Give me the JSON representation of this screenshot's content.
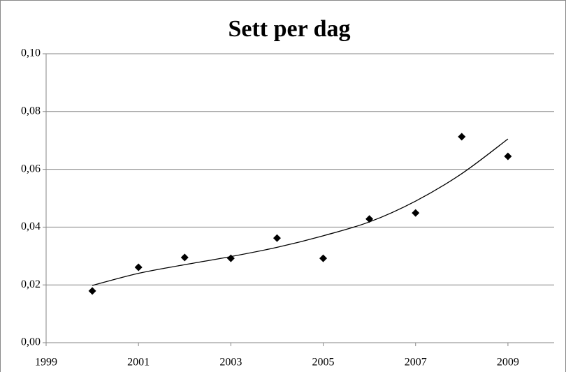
{
  "chart_data": {
    "type": "scatter",
    "title": "Sett per dag",
    "x": [
      2000,
      2001,
      2002,
      2003,
      2004,
      2005,
      2006,
      2007,
      2008,
      2009
    ],
    "values": [
      0.0179,
      0.0261,
      0.0295,
      0.0292,
      0.0362,
      0.0292,
      0.0428,
      0.0449,
      0.0713,
      0.0645
    ],
    "color": "#000000",
    "trendline": {
      "x": [
        2000,
        2001,
        2002,
        2003,
        2004,
        2005,
        2006,
        2007,
        2008,
        2009
      ],
      "values": [
        0.0198,
        0.024,
        0.027,
        0.0298,
        0.033,
        0.037,
        0.0418,
        0.049,
        0.0585,
        0.0705
      ],
      "color": "#000000"
    },
    "xlim": [
      1999,
      2010
    ],
    "xticks": [
      1999,
      2001,
      2003,
      2005,
      2007,
      2009
    ],
    "ylim": [
      0,
      0.1
    ],
    "yticks": [
      {
        "value": 0,
        "label": "0,00"
      },
      {
        "value": 0.02,
        "label": "0,02"
      },
      {
        "value": 0.04,
        "label": "0,04"
      },
      {
        "value": 0.06,
        "label": "0,06"
      },
      {
        "value": 0.08,
        "label": "0,08"
      },
      {
        "value": 0.1,
        "label": "0,10"
      }
    ],
    "grid": true
  }
}
